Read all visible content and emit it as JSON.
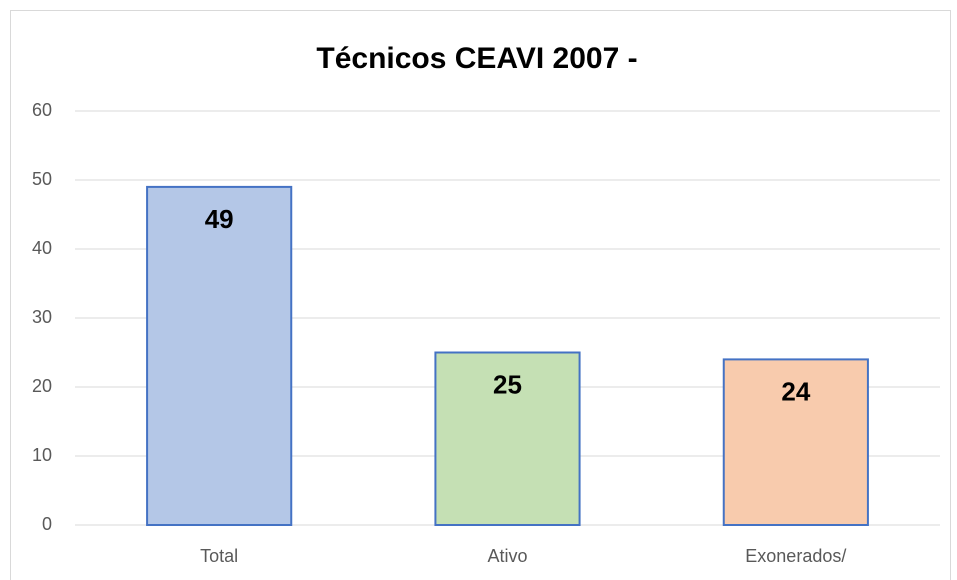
{
  "chart_data": {
    "type": "bar",
    "title": "Técnicos CEAVI 2007 -",
    "categories": [
      "Total",
      "Ativo",
      "Exonerados/"
    ],
    "values": [
      49,
      25,
      24
    ],
    "colors": [
      "#b4c7e7",
      "#c5e0b4",
      "#f8cbad"
    ],
    "edgecolor": "#4472c4",
    "ylim": [
      0,
      60
    ],
    "yticks": [
      0,
      10,
      20,
      30,
      40,
      50,
      60
    ],
    "grid": true
  }
}
